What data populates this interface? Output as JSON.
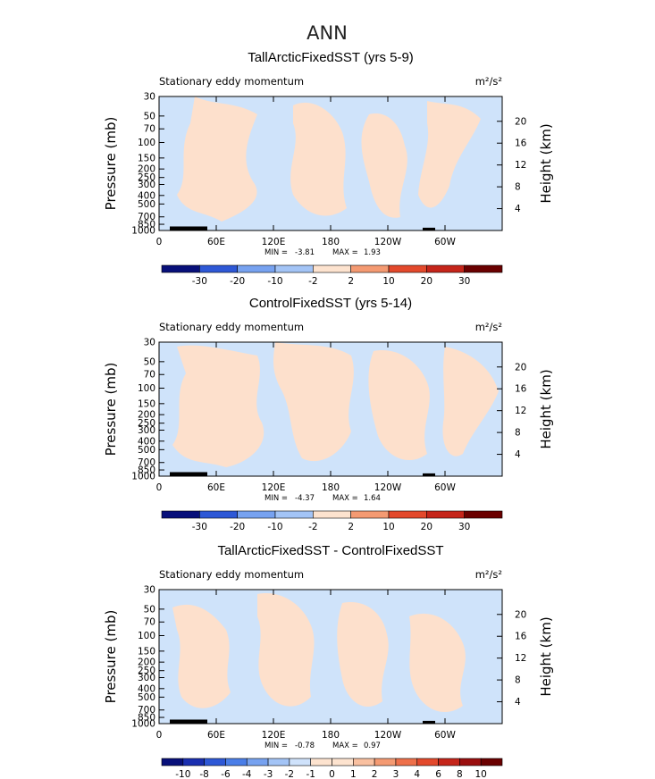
{
  "main_title": "ANN",
  "chart_data": [
    {
      "type": "heatmap",
      "title": "TallArcticFixedSST (yrs 5-9)",
      "subtitle": "Stationary eddy momentum",
      "units": "m²/s²",
      "ylabel": "Pressure (mb)",
      "ylabel_right": "Height (km)",
      "pressure_ticks": [
        "30",
        "50",
        "70",
        "100",
        "150",
        "200",
        "250",
        "300",
        "400",
        "500",
        "700",
        "850",
        "1000"
      ],
      "height_ticks": [
        "20",
        "16",
        "12",
        "8",
        "4"
      ],
      "lon_ticks": [
        "0",
        "60E",
        "120E",
        "180",
        "120W",
        "60W"
      ],
      "min_label": "MIN =",
      "min_value": "-3.81",
      "max_label": "MAX =",
      "max_value": "1.93",
      "levels": [
        "-30",
        "-20",
        "-10",
        "-2",
        "2",
        "10",
        "20",
        "30"
      ]
    },
    {
      "type": "heatmap",
      "title": "ControlFixedSST (yrs 5-14)",
      "subtitle": "Stationary eddy momentum",
      "units": "m²/s²",
      "ylabel": "Pressure (mb)",
      "ylabel_right": "Height (km)",
      "pressure_ticks": [
        "30",
        "50",
        "70",
        "100",
        "150",
        "200",
        "250",
        "300",
        "400",
        "500",
        "700",
        "850",
        "1000"
      ],
      "height_ticks": [
        "20",
        "16",
        "12",
        "8",
        "4"
      ],
      "lon_ticks": [
        "0",
        "60E",
        "120E",
        "180",
        "120W",
        "60W"
      ],
      "min_label": "MIN =",
      "min_value": "-4.37",
      "max_label": "MAX =",
      "max_value": "1.64",
      "levels": [
        "-30",
        "-20",
        "-10",
        "-2",
        "2",
        "10",
        "20",
        "30"
      ]
    },
    {
      "type": "heatmap",
      "title": "TallArcticFixedSST - ControlFixedSST",
      "subtitle": "Stationary eddy momentum",
      "units": "m²/s²",
      "ylabel": "Pressure (mb)",
      "ylabel_right": "Height (km)",
      "pressure_ticks": [
        "30",
        "50",
        "70",
        "100",
        "150",
        "200",
        "250",
        "300",
        "400",
        "500",
        "700",
        "850",
        "1000"
      ],
      "height_ticks": [
        "20",
        "16",
        "12",
        "8",
        "4"
      ],
      "lon_ticks": [
        "0",
        "60E",
        "120E",
        "180",
        "120W",
        "60W"
      ],
      "min_label": "MIN =",
      "min_value": "-0.78",
      "max_label": "MAX =",
      "max_value": "0.97",
      "levels": [
        "-10",
        "-8",
        "-6",
        "-4",
        "-3",
        "-2",
        "-1",
        "0",
        "1",
        "2",
        "3",
        "4",
        "6",
        "8",
        "10"
      ]
    }
  ],
  "palette": {
    "negative_light": "#cfe3fa",
    "positive_light": "#fde0cc",
    "blue_mid": "#a9c8f2",
    "colorbar_colors": [
      "#08107a",
      "#1a2fb0",
      "#2e58d6",
      "#4a7ee8",
      "#77a2f0",
      "#a3c4f6",
      "#cfe2fb",
      "#fde3cf",
      "#f9c0a0",
      "#f49a72",
      "#ee704a",
      "#e3492c",
      "#c5251a",
      "#9a0e0e",
      "#6a0000"
    ]
  }
}
